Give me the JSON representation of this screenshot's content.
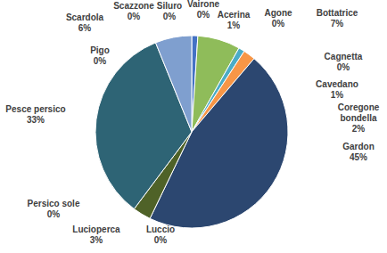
{
  "chart_data": {
    "type": "pie",
    "categories": [
      "Acerina",
      "Agone",
      "Bottatrice",
      "Cagnetta",
      "Cavedano",
      "Coregone bondella",
      "Gardon",
      "Luccio",
      "Lucioperca",
      "Persico sole",
      "Pesce persico",
      "Pigo",
      "Scardola",
      "Scazzone",
      "Siluro",
      "Vairone"
    ],
    "values": [
      1,
      0,
      7,
      0,
      1,
      2,
      45,
      0,
      3,
      0,
      33,
      0,
      6,
      0,
      0,
      0
    ],
    "value_labels": [
      "1%",
      "0%",
      "7%",
      "0%",
      "1%",
      "2%",
      "45%",
      "0%",
      "3%",
      "0%",
      "33%",
      "0%",
      "6%",
      "0%",
      "0%",
      "0%"
    ],
    "colors": [
      "#4472c4",
      "#a5a5a5",
      "#8fbc5a",
      "#c0504d",
      "#4bacc6",
      "#f79646",
      "#2c4770",
      "#8064a2",
      "#4f6228",
      "#d9d9d9",
      "#2e6475",
      "#9bbb59",
      "#7f9fcf",
      "#b7b7b7",
      "#1f3864",
      "#5b9bd5"
    ],
    "data_labels": true
  }
}
